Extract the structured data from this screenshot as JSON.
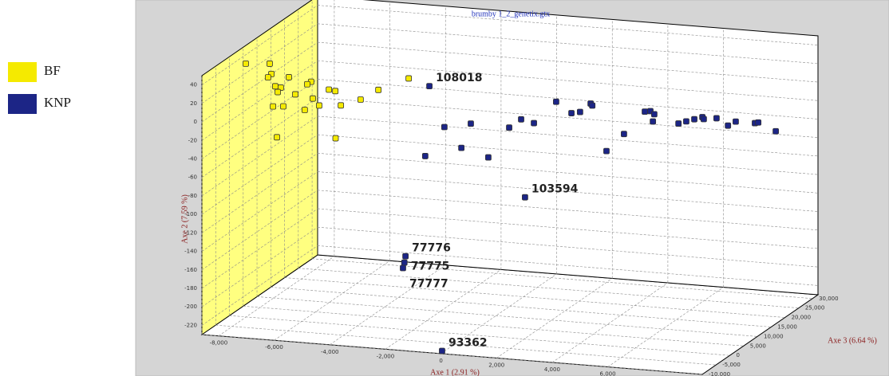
{
  "chart_data": {
    "type": "scatter3d",
    "title": "brumby 1_2_genetix.gtx",
    "x_label": "Axe 1 (2.91 %)",
    "y_label": "Axe 2 (7.59 %)",
    "z_label": "Axe 3 (6.64 %)",
    "xlim": [
      -8600,
      9400
    ],
    "ylim": [
      -230,
      50
    ],
    "zlim": [
      -10000,
      32000
    ],
    "xticks": [
      {
        "value": -8000,
        "label": "-8,000"
      },
      {
        "value": -6000,
        "label": "-6,000"
      },
      {
        "value": -4000,
        "label": "-4,000"
      },
      {
        "value": -2000,
        "label": "-2,000"
      },
      0,
      {
        "value": 2000,
        "label": "2,000"
      },
      {
        "value": 4000,
        "label": "4,000"
      },
      {
        "value": 6000,
        "label": "6,000"
      }
    ],
    "yticks": [
      40,
      20,
      0,
      -20,
      -40,
      -60,
      -80,
      -100,
      -120,
      -140,
      -160,
      -180,
      -200,
      -220
    ],
    "zticks": [
      {
        "value": 30000,
        "label": "30,000"
      },
      {
        "value": 25000,
        "label": "25,000"
      },
      {
        "value": 20000,
        "label": "20,000"
      },
      {
        "value": 15000,
        "label": "15,000"
      },
      {
        "value": 10000,
        "label": "10,000"
      },
      {
        "value": 5000,
        "label": "5,000"
      },
      0,
      {
        "value": -5000,
        "label": "-5,000"
      },
      {
        "value": -10000,
        "label": "-10,000"
      }
    ],
    "grid": true,
    "series": [
      {
        "name": "BF",
        "color": "#f5ea00",
        "x": [
          -8270,
          -7410,
          -7350,
          -6720,
          -7470,
          -7210,
          -7010,
          -7120,
          -6490,
          -5920,
          -5280,
          -5050,
          -5860,
          -5630,
          -6150,
          -6920,
          -7290,
          -4850,
          -4140,
          -3500,
          -2410,
          -7150,
          -5040,
          -6060
        ],
        "y": [
          38,
          40,
          29,
          27,
          25,
          16,
          15,
          10,
          9,
          24,
          17,
          16,
          6,
          -1,
          -7,
          -5,
          -6,
          1,
          9,
          21,
          36,
          -39,
          -35,
          21
        ],
        "z": [
          2600,
          2600,
          2600,
          2600,
          2600,
          2600,
          2600,
          2600,
          2600,
          2600,
          2600,
          2600,
          2600,
          2600,
          2600,
          2600,
          2600,
          2600,
          2600,
          2600,
          2600,
          2600,
          2600,
          2600
        ]
      },
      {
        "name": "KNP",
        "color": "#1c2586",
        "x": [
          -3330,
          -2790,
          -1840,
          -2180,
          -1210,
          -3480,
          -460,
          -30,
          430,
          1230,
          1780,
          2090,
          2470,
          2530,
          3040,
          3670,
          4420,
          4620,
          4710,
          4760,
          5630,
          5910,
          6200,
          6490,
          6540,
          7000,
          7410,
          7690,
          8380,
          8500,
          9130,
          110,
          -4190,
          -4230,
          -4280,
          40
        ],
        "y": [
          -9,
          -52,
          -46,
          -73,
          -81,
          -85,
          -47,
          -37,
          -40,
          -15,
          -26,
          -24,
          -14,
          -16,
          -64,
          -44,
          -18,
          -17,
          -28,
          -20,
          -28,
          -25,
          -22,
          -19,
          -21,
          -19,
          -26,
          -21,
          -21,
          -20,
          -28,
          -121,
          -195,
          -202,
          -208,
          -227
        ],
        "z": [
          19400,
          19400,
          19400,
          19400,
          19400,
          19400,
          19400,
          19400,
          19400,
          19400,
          19400,
          19400,
          19400,
          19400,
          19400,
          19400,
          19400,
          19400,
          19400,
          19400,
          19400,
          19400,
          19400,
          19400,
          19400,
          19400,
          19400,
          19400,
          19400,
          19400,
          19400,
          19400,
          19400,
          19400,
          19400,
          -10000
        ],
        "labels": [
          "108018",
          null,
          null,
          null,
          null,
          null,
          null,
          null,
          null,
          null,
          null,
          null,
          null,
          null,
          null,
          null,
          null,
          null,
          null,
          null,
          null,
          null,
          null,
          null,
          null,
          null,
          null,
          null,
          null,
          null,
          null,
          "103594",
          "77776",
          "77775",
          "77777",
          "93362"
        ]
      }
    ]
  }
}
